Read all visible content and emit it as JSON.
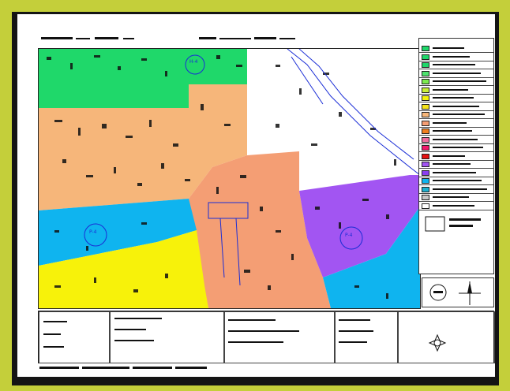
{
  "colors": {
    "background": "#c4cf3a",
    "frame": "#141414",
    "green": "#1fd86a",
    "orange": "#f6b67a",
    "salmon": "#f49e74",
    "cyan": "#0fb4ef",
    "yellow": "#f7f20a",
    "purple": "#a255f2",
    "white": "#ffffff",
    "annotation_blue": "#1a2dd6"
  },
  "legend": {
    "colors": [
      "#1fd86a",
      "#1fd86a",
      "#1fd86a",
      "#4ee36e",
      "#7deb50",
      "#c9ef38",
      "#f3f20c",
      "#f6e41a",
      "#f6b67a",
      "#f49e74",
      "#f08020",
      "#f06b9e",
      "#f0186b",
      "#e51010",
      "#a255f2",
      "#8a3ff0",
      "#0fb4ef",
      "#1fb0d0",
      "#c8c8c8",
      "#ffffff"
    ]
  },
  "zone_labels": [
    {
      "text": "H-4",
      "zone": "green"
    },
    {
      "text": "P-4",
      "zone": "cyan"
    },
    {
      "text": "P-4",
      "zone": "purple"
    }
  ],
  "icons": {
    "north_arrow": "north-arrow-icon",
    "compass_rose": "compass-rose-icon",
    "logo": "seal-logo-icon"
  }
}
